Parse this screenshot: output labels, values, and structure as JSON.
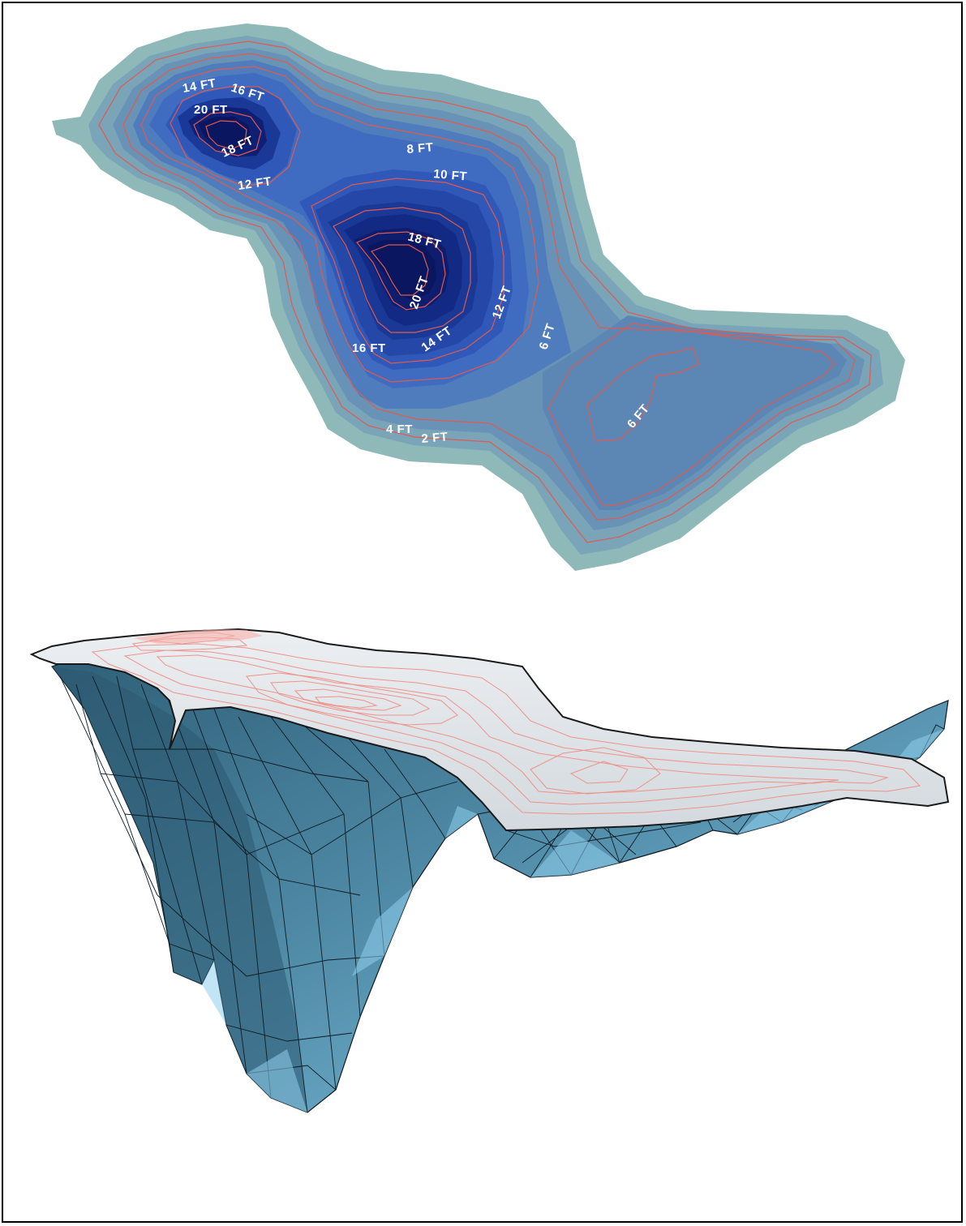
{
  "bathymetry_map": {
    "colors": {
      "shore": "#8fb8b8",
      "contour_line": "#e05a50",
      "deep": "#0b1660",
      "shallow_lobe": "#5c87b5",
      "label": "#ffffff"
    },
    "labels": [
      {
        "text": "14 FT"
      },
      {
        "text": "16 FT"
      },
      {
        "text": "20 FT"
      },
      {
        "text": "18 FT"
      },
      {
        "text": "12 FT"
      },
      {
        "text": "8 FT"
      },
      {
        "text": "10 FT"
      },
      {
        "text": "18 FT"
      },
      {
        "text": "20 FT"
      },
      {
        "text": "12 FT"
      },
      {
        "text": "16 FT"
      },
      {
        "text": "14 FT"
      },
      {
        "text": "6 FT"
      },
      {
        "text": "4 FT"
      },
      {
        "text": "2 FT"
      },
      {
        "text": "6 FT"
      }
    ]
  },
  "terrain_3d": {
    "colors": {
      "surface": "#dde2e6",
      "contour_line": "#f08a80",
      "mesh_fill": "#4f8aa6",
      "mesh_light": "#8fd0ec",
      "mesh_line": "#0c1a22"
    }
  }
}
